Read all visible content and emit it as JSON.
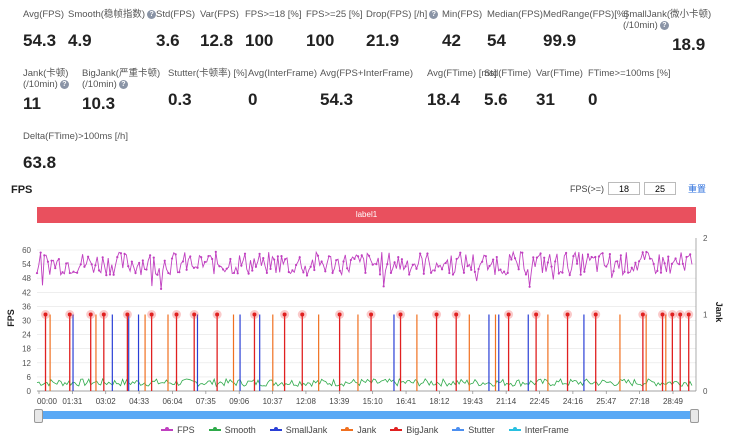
{
  "stats_row1": [
    {
      "name": "avg-fps",
      "label": "Avg(FPS)",
      "value": "54.3",
      "help": false
    },
    {
      "name": "smooth",
      "label": "Smooth(稳帧指数)",
      "value": "4.9",
      "help": true
    },
    {
      "name": "std-fps",
      "label": "Std(FPS)",
      "value": "3.6",
      "help": false
    },
    {
      "name": "var-fps",
      "label": "Var(FPS)",
      "value": "12.8",
      "help": false
    },
    {
      "name": "fps-ge-18",
      "label": "FPS>=18 [%]",
      "value": "100",
      "help": false
    },
    {
      "name": "fps-ge-25",
      "label": "FPS>=25 [%]",
      "value": "100",
      "help": false
    },
    {
      "name": "drop-fps",
      "label": "Drop(FPS) [/h]",
      "value": "21.9",
      "help": true
    },
    {
      "name": "min-fps",
      "label": "Min(FPS)",
      "value": "42",
      "help": false
    },
    {
      "name": "median-fps",
      "label": "Median(FPS)",
      "value": "54",
      "help": false
    },
    {
      "name": "medrange-fps",
      "label": "MedRange(FPS)[%]",
      "value": "99.9",
      "help": false
    },
    {
      "name": "smalljank",
      "label": "SmallJank(微小卡顿)\n(/10min)",
      "value": "18.9",
      "help": true
    }
  ],
  "stats_row2": [
    {
      "name": "jank",
      "label": "Jank(卡顿)\n(/10min)",
      "value": "11",
      "help": true
    },
    {
      "name": "bigjank",
      "label": "BigJank(严重卡顿)\n(/10min)",
      "value": "10.3",
      "help": true
    },
    {
      "name": "stutter",
      "label": "Stutter(卡顿率) [%]",
      "value": "0.3",
      "help": false
    },
    {
      "name": "avg-interframe",
      "label": "Avg(InterFrame)",
      "value": "0",
      "help": false
    },
    {
      "name": "avg-fps-interframe",
      "label": "Avg(FPS+InterFrame)",
      "value": "54.3",
      "help": false
    },
    {
      "name": "avg-ftime",
      "label": "Avg(FTime) [ms]",
      "value": "18.4",
      "help": false
    },
    {
      "name": "std-ftime",
      "label": "Std(FTime)",
      "value": "5.6",
      "help": false
    },
    {
      "name": "var-ftime",
      "label": "Var(FTime)",
      "value": "31",
      "help": false
    },
    {
      "name": "ftime-ge-100",
      "label": "FTime>=100ms [%]",
      "value": "0",
      "help": false
    }
  ],
  "stats_row3": [
    {
      "name": "delta-ftime",
      "label": "Delta(FTime)>100ms [/h]",
      "value": "63.8",
      "help": false
    }
  ],
  "section_title": "FPS",
  "threshold": {
    "label": "FPS(>=)",
    "low": "18",
    "high": "25",
    "reset": "重置"
  },
  "label_bar": "label1",
  "colors": {
    "fps": "#c040c0",
    "smooth": "#2eaa4a",
    "smalljank": "#2a3fd6",
    "jank": "#f07020",
    "bigjank": "#e02020",
    "stutter": "#4c8ff0",
    "interframe": "#29c0e0"
  },
  "chart_data": {
    "type": "line",
    "x_ticks": [
      "00:00",
      "01:31",
      "03:02",
      "04:33",
      "06:04",
      "07:35",
      "09:06",
      "10:37",
      "12:08",
      "13:39",
      "15:10",
      "16:41",
      "18:12",
      "19:43",
      "21:14",
      "22:45",
      "24:16",
      "25:47",
      "27:18",
      "28:49"
    ],
    "y_left": {
      "label": "FPS",
      "ticks": [
        0,
        6,
        12,
        18,
        24,
        30,
        36,
        42,
        48,
        54,
        60
      ]
    },
    "y_right": {
      "label": "Jank",
      "ticks": [
        0,
        1,
        2
      ]
    },
    "fps_range": [
      42,
      60
    ],
    "fps_mean": 54.3,
    "smooth_range": [
      0,
      6
    ],
    "series": [
      {
        "name": "FPS"
      },
      {
        "name": "Smooth"
      },
      {
        "name": "SmallJank"
      },
      {
        "name": "Jank"
      },
      {
        "name": "BigJank"
      },
      {
        "name": "Stutter"
      },
      {
        "name": "InterFrame"
      }
    ],
    "bigjank_positions": [
      0.013,
      0.05,
      0.082,
      0.102,
      0.138,
      0.175,
      0.213,
      0.24,
      0.275,
      0.332,
      0.378,
      0.405,
      0.462,
      0.51,
      0.555,
      0.61,
      0.64,
      0.72,
      0.762,
      0.81,
      0.853,
      0.925,
      0.955,
      0.97,
      0.982,
      0.995
    ],
    "jank_positions": [
      0.02,
      0.09,
      0.165,
      0.2,
      0.3,
      0.36,
      0.43,
      0.49,
      0.58,
      0.66,
      0.7,
      0.78,
      0.89,
      0.93,
      0.96
    ],
    "smalljank_positions": [
      0.055,
      0.115,
      0.14,
      0.155,
      0.245,
      0.31,
      0.34,
      0.545,
      0.69,
      0.705,
      0.75,
      0.835
    ]
  },
  "legend": [
    "FPS",
    "Smooth",
    "SmallJank",
    "Jank",
    "BigJank",
    "Stutter",
    "InterFrame"
  ]
}
